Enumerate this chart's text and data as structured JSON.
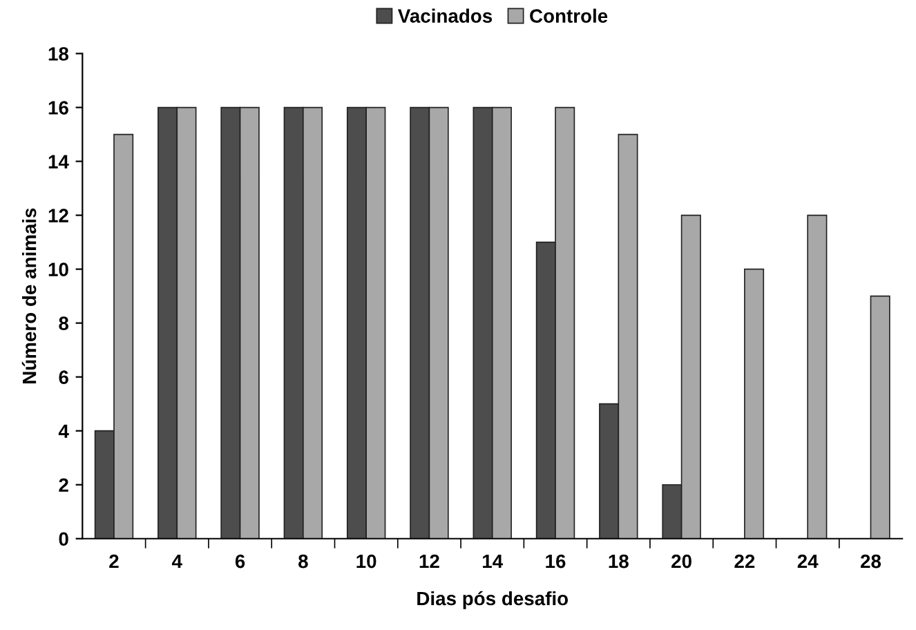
{
  "chart_data": {
    "type": "bar",
    "xlabel": "Dias pós desafio",
    "ylabel": "Número de animais",
    "categories": [
      "2",
      "4",
      "6",
      "8",
      "10",
      "12",
      "14",
      "16",
      "18",
      "20",
      "22",
      "24",
      "28"
    ],
    "series": [
      {
        "name": "Vacinados",
        "color": "#4d4d4d",
        "values": [
          4,
          16,
          16,
          16,
          16,
          16,
          16,
          11,
          5,
          2,
          0,
          0,
          0
        ]
      },
      {
        "name": "Controle",
        "color": "#a8a8a8",
        "values": [
          15,
          16,
          16,
          16,
          16,
          16,
          16,
          16,
          15,
          12,
          10,
          12,
          9
        ]
      }
    ],
    "ylim": [
      0,
      18
    ],
    "yticks": [
      0,
      2,
      4,
      6,
      8,
      10,
      12,
      14,
      16,
      18
    ],
    "grid": false,
    "legend": "top"
  }
}
